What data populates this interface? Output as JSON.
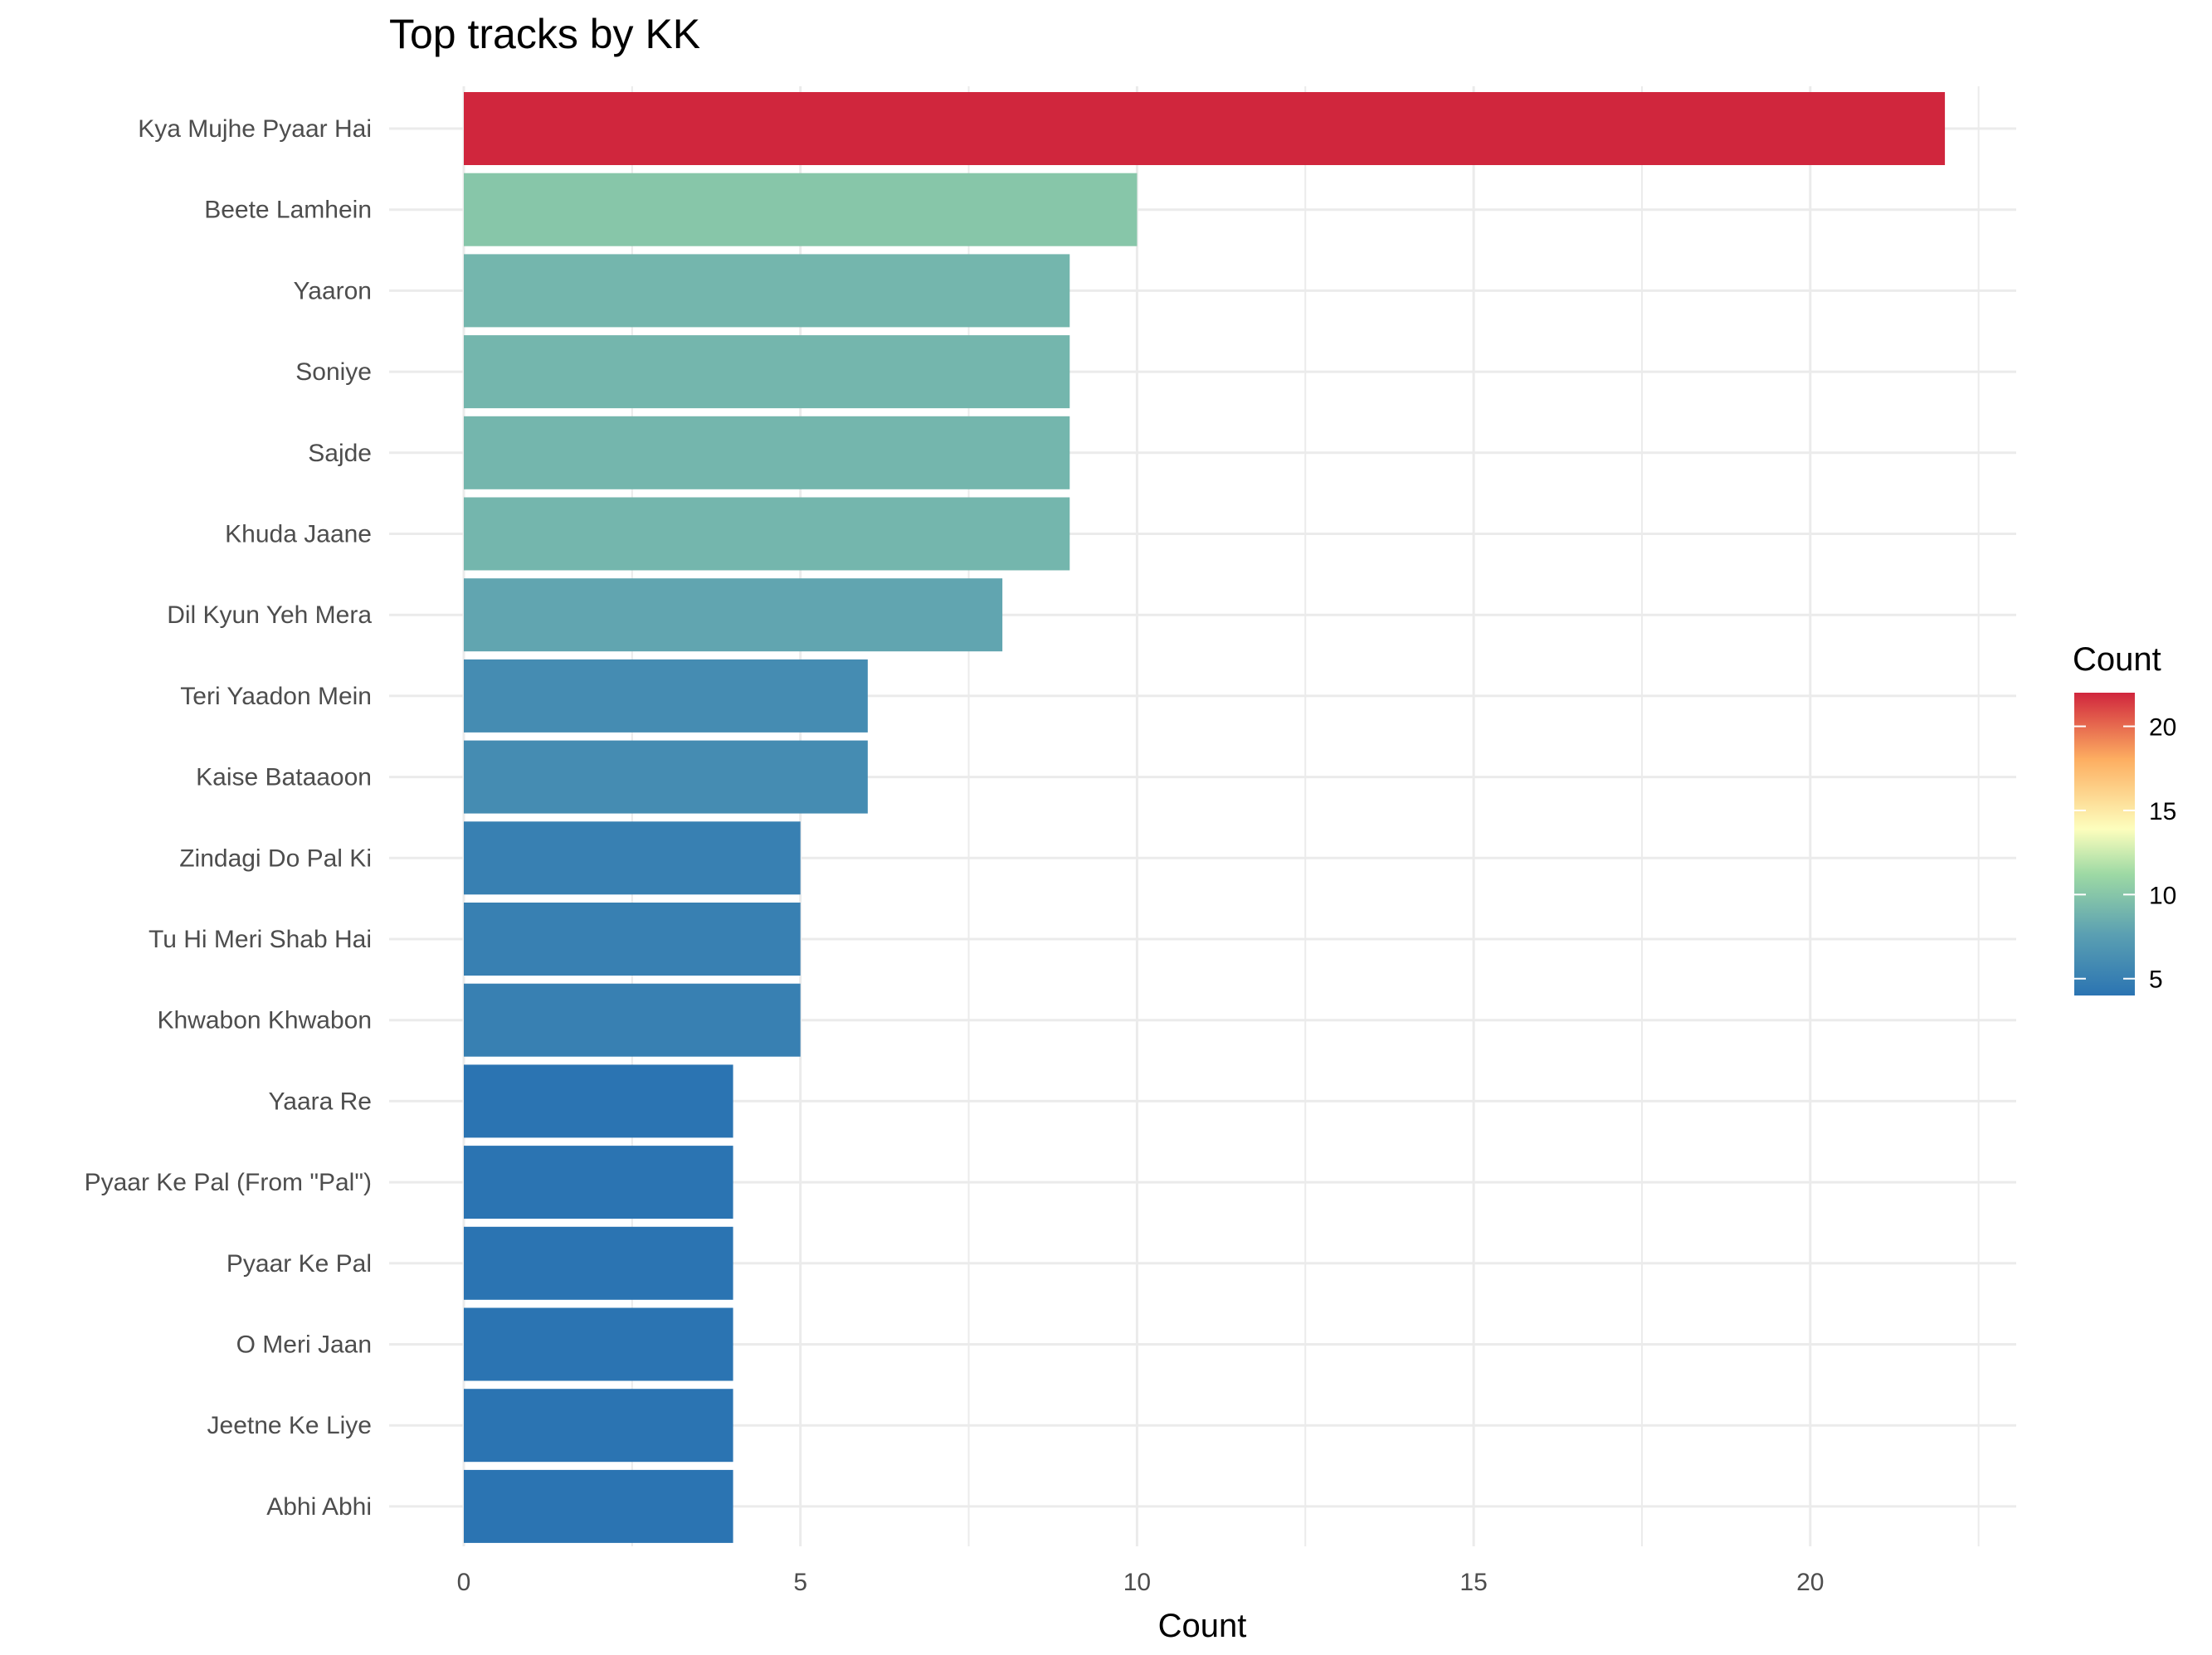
{
  "chart_data": {
    "type": "bar",
    "orientation": "horizontal",
    "title": "Top tracks by KK",
    "xlabel": "Count",
    "ylabel": "",
    "xlim": [
      0,
      22
    ],
    "x_ticks": [
      0,
      5,
      10,
      15,
      20
    ],
    "grid": true,
    "categories": [
      "Kya Mujhe Pyaar Hai",
      "Beete Lamhein",
      "Yaaron",
      "Soniye",
      "Sajde",
      "Khuda Jaane",
      "Dil Kyun Yeh Mera",
      "Teri Yaadon Mein",
      "Kaise Bataaoon",
      "Zindagi Do Pal Ki",
      "Tu Hi Meri Shab Hai",
      "Khwabon Khwabon",
      "Yaara Re",
      "Pyaar Ke Pal (From \"Pal\")",
      "Pyaar Ke Pal",
      "O Meri Jaan",
      "Jeetne Ke Liye",
      "Abhi Abhi"
    ],
    "values": [
      22,
      10,
      9,
      9,
      9,
      9,
      8,
      6,
      6,
      5,
      5,
      5,
      4,
      4,
      4,
      4,
      4,
      4
    ],
    "color_scale": {
      "title": "Count",
      "placement": "right",
      "ticks": [
        5,
        10,
        15,
        20
      ],
      "range": [
        4,
        22
      ],
      "palette": "Spectral (reversed)",
      "stops": [
        "#2b74b2",
        "#5a9fb2",
        "#9dd9a4",
        "#fdfebd",
        "#fdae61",
        "#d0263d"
      ]
    }
  }
}
